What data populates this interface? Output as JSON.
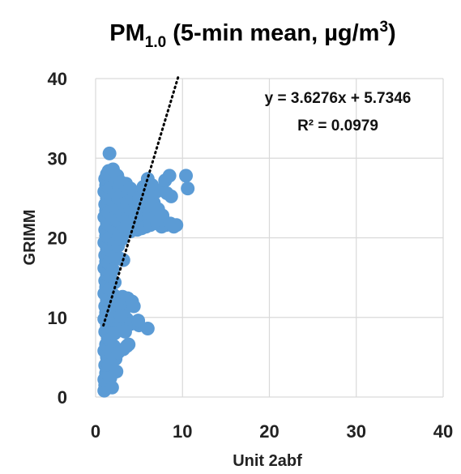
{
  "chart_data": {
    "type": "scatter",
    "title": {
      "prefix": "PM",
      "subscript": "1.0",
      "middle": " (5-min mean, µg/m",
      "superscript": "3",
      "suffix": ")"
    },
    "xlabel": "Unit 2abf",
    "ylabel": "GRIMM",
    "xlim": [
      0,
      40
    ],
    "ylim": [
      0,
      40
    ],
    "xticks": [
      "0",
      "10",
      "20",
      "30",
      "40"
    ],
    "yticks": [
      "0",
      "10",
      "20",
      "30",
      "40"
    ],
    "grid": true,
    "marker_color": "#5b9bd5",
    "trendline": {
      "slope": 3.6276,
      "intercept": 5.7346,
      "x_range": [
        0.9,
        9.5
      ],
      "style": "dotted",
      "color": "#000000"
    },
    "equation_text": "y = 3.6276x + 5.7346",
    "r2_text": "R² = 0.0979",
    "points": [
      [
        1.0,
        0.8
      ],
      [
        1.1,
        1.5
      ],
      [
        1.0,
        2.2
      ],
      [
        1.2,
        3.0
      ],
      [
        1.1,
        4.0
      ],
      [
        1.3,
        5.0
      ],
      [
        1.0,
        5.8
      ],
      [
        1.2,
        6.6
      ],
      [
        1.4,
        7.4
      ],
      [
        1.1,
        8.2
      ],
      [
        1.3,
        9.0
      ],
      [
        1.0,
        9.8
      ],
      [
        1.2,
        10.6
      ],
      [
        1.1,
        11.4
      ],
      [
        1.3,
        12.2
      ],
      [
        1.0,
        13.0
      ],
      [
        1.2,
        13.8
      ],
      [
        1.1,
        14.6
      ],
      [
        1.3,
        15.4
      ],
      [
        1.0,
        16.2
      ],
      [
        1.2,
        17.0
      ],
      [
        1.1,
        17.8
      ],
      [
        1.3,
        18.6
      ],
      [
        1.0,
        19.4
      ],
      [
        1.2,
        20.2
      ],
      [
        1.1,
        21.0
      ],
      [
        1.3,
        21.8
      ],
      [
        1.0,
        22.6
      ],
      [
        1.2,
        23.4
      ],
      [
        1.1,
        24.2
      ],
      [
        1.3,
        25.0
      ],
      [
        1.0,
        25.8
      ],
      [
        1.2,
        26.6
      ],
      [
        1.1,
        27.4
      ],
      [
        1.3,
        28.0
      ],
      [
        1.5,
        28.4
      ],
      [
        1.7,
        27.6
      ],
      [
        1.6,
        26.2
      ],
      [
        1.8,
        24.8
      ],
      [
        1.5,
        23.2
      ],
      [
        1.7,
        21.6
      ],
      [
        1.6,
        20.0
      ],
      [
        1.8,
        18.4
      ],
      [
        1.5,
        16.8
      ],
      [
        1.7,
        15.2
      ],
      [
        1.6,
        13.6
      ],
      [
        1.8,
        12.0
      ],
      [
        1.5,
        10.4
      ],
      [
        1.7,
        8.8
      ],
      [
        1.6,
        7.2
      ],
      [
        1.8,
        5.6
      ],
      [
        1.5,
        4.0
      ],
      [
        1.7,
        2.4
      ],
      [
        1.9,
        1.2
      ],
      [
        2.0,
        28.6
      ],
      [
        2.2,
        27.2
      ],
      [
        2.1,
        25.6
      ],
      [
        2.3,
        24.0
      ],
      [
        2.0,
        22.4
      ],
      [
        2.2,
        20.8
      ],
      [
        2.1,
        19.2
      ],
      [
        2.3,
        17.6
      ],
      [
        2.0,
        16.0
      ],
      [
        2.2,
        14.4
      ],
      [
        2.1,
        12.8
      ],
      [
        2.3,
        11.2
      ],
      [
        2.0,
        9.6
      ],
      [
        2.2,
        8.0
      ],
      [
        2.1,
        6.4
      ],
      [
        2.3,
        4.8
      ],
      [
        2.4,
        3.2
      ],
      [
        2.5,
        27.8
      ],
      [
        2.7,
        26.4
      ],
      [
        2.6,
        25.0
      ],
      [
        2.8,
        23.6
      ],
      [
        2.5,
        22.2
      ],
      [
        2.7,
        20.6
      ],
      [
        2.6,
        19.0
      ],
      [
        2.8,
        17.4
      ],
      [
        2.9,
        27.0
      ],
      [
        3.0,
        25.4
      ],
      [
        3.2,
        24.2
      ],
      [
        3.1,
        22.8
      ],
      [
        3.3,
        21.2
      ],
      [
        3.0,
        19.8
      ],
      [
        3.2,
        17.2
      ],
      [
        3.1,
        12.6
      ],
      [
        3.3,
        11.0
      ],
      [
        3.0,
        9.4
      ],
      [
        3.2,
        6.0
      ],
      [
        3.5,
        26.8
      ],
      [
        3.7,
        25.8
      ],
      [
        3.6,
        24.4
      ],
      [
        3.8,
        23.0
      ],
      [
        3.5,
        21.4
      ],
      [
        3.7,
        12.4
      ],
      [
        3.6,
        9.8
      ],
      [
        3.8,
        6.6
      ],
      [
        4.0,
        26.2
      ],
      [
        4.2,
        24.8
      ],
      [
        4.1,
        23.4
      ],
      [
        4.3,
        22.0
      ],
      [
        4.0,
        20.8
      ],
      [
        4.2,
        12.0
      ],
      [
        4.1,
        9.2
      ],
      [
        4.5,
        25.6
      ],
      [
        4.7,
        24.0
      ],
      [
        4.6,
        22.6
      ],
      [
        4.8,
        21.0
      ],
      [
        5.0,
        25.0
      ],
      [
        5.2,
        23.8
      ],
      [
        5.1,
        22.2
      ],
      [
        5.3,
        21.2
      ],
      [
        5.0,
        9.0
      ],
      [
        5.5,
        26.4
      ],
      [
        5.7,
        24.6
      ],
      [
        5.6,
        22.8
      ],
      [
        5.8,
        21.4
      ],
      [
        6.0,
        27.4
      ],
      [
        6.2,
        25.2
      ],
      [
        6.1,
        23.0
      ],
      [
        6.3,
        21.6
      ],
      [
        6.0,
        8.6
      ],
      [
        6.5,
        26.6
      ],
      [
        6.7,
        24.4
      ],
      [
        6.6,
        22.4
      ],
      [
        7.0,
        25.8
      ],
      [
        7.2,
        23.6
      ],
      [
        7.1,
        21.8
      ],
      [
        7.5,
        26.0
      ],
      [
        7.7,
        22.8
      ],
      [
        7.6,
        21.4
      ],
      [
        8.0,
        27.2
      ],
      [
        8.2,
        25.6
      ],
      [
        8.1,
        21.6
      ],
      [
        8.5,
        27.8
      ],
      [
        8.7,
        25.2
      ],
      [
        8.6,
        21.8
      ],
      [
        9.0,
        21.4
      ],
      [
        9.3,
        21.6
      ],
      [
        10.4,
        27.8
      ],
      [
        10.6,
        26.2
      ],
      [
        2.6,
        5.6
      ],
      [
        3.6,
        6.4
      ],
      [
        1.4,
        10.0
      ],
      [
        1.9,
        10.8
      ],
      [
        2.4,
        11.6
      ],
      [
        2.9,
        10.2
      ],
      [
        3.4,
        8.2
      ],
      [
        4.4,
        11.4
      ],
      [
        4.9,
        9.6
      ],
      [
        1.6,
        30.6
      ]
    ]
  }
}
